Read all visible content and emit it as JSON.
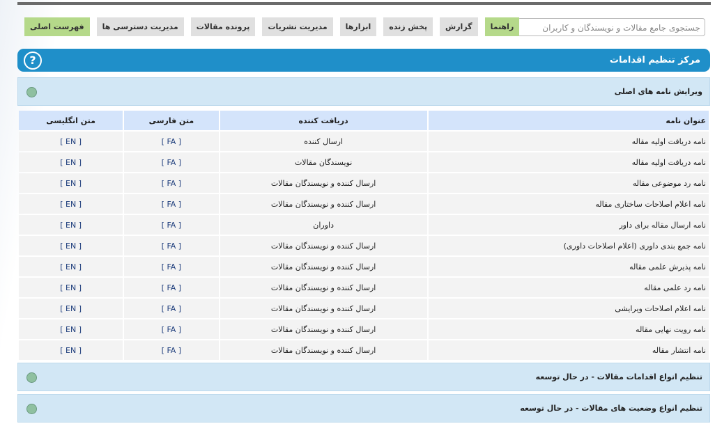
{
  "search": {
    "placeholder": "جستجوی جامع مقالات و نویسندگان و کاربران"
  },
  "nav": [
    {
      "label": "فهرست اصلی",
      "active": true
    },
    {
      "label": "مدیریت دسترسی ها",
      "active": false
    },
    {
      "label": "پرونده مقالات",
      "active": false
    },
    {
      "label": "مدیریت نشریات",
      "active": false
    },
    {
      "label": "ابزارها",
      "active": false
    },
    {
      "label": "پخش زنده",
      "active": false
    },
    {
      "label": "گزارش",
      "active": false
    },
    {
      "label": "راهنما",
      "active": true
    }
  ],
  "header": {
    "title": "مرکز تنظیم اقدامات",
    "help": "?"
  },
  "sections": [
    {
      "title": "ویرایش نامه های اصلی"
    },
    {
      "title": "تنظیم انواع اقدامات مقالات - در حال توسعه"
    },
    {
      "title": "تنظیم انواع وضعیت های مقالات - در حال توسعه"
    }
  ],
  "table": {
    "columns": [
      "عنوان نامه",
      "دریافت کننده",
      "متن فارسی",
      "متن انگلیسی"
    ],
    "rows": [
      [
        "نامه دریافت اولیه مقاله",
        "ارسال کننده",
        "[ FA ]",
        "[ EN ]"
      ],
      [
        "نامه دریافت اولیه مقاله",
        "نویسندگان مقالات",
        "[ FA ]",
        "[ EN ]"
      ],
      [
        "نامه رد موضوعی مقاله",
        "ارسال کننده و نویسندگان مقالات",
        "[ FA ]",
        "[ EN ]"
      ],
      [
        "نامه اعلام اصلاحات ساختاری مقاله",
        "ارسال کننده و نویسندگان مقالات",
        "[ FA ]",
        "[ EN ]"
      ],
      [
        "نامه ارسال مقاله برای داور",
        "داوران",
        "[ FA ]",
        "[ EN ]"
      ],
      [
        "نامه جمع بندی داوری (اعلام اصلاحات داوری)",
        "ارسال کننده و نویسندگان مقالات",
        "[ FA ]",
        "[ EN ]"
      ],
      [
        "نامه پذیرش علمی مقاله",
        "ارسال کننده و نویسندگان مقالات",
        "[ FA ]",
        "[ EN ]"
      ],
      [
        "نامه رد علمی مقاله",
        "ارسال کننده و نویسندگان مقالات",
        "[ FA ]",
        "[ EN ]"
      ],
      [
        "نامه اعلام اصلاحات ویرایشی",
        "ارسال کننده و نویسندگان مقالات",
        "[ FA ]",
        "[ EN ]"
      ],
      [
        "نامه رویت نهایی مقاله",
        "ارسال کننده و نویسندگان مقالات",
        "[ FA ]",
        "[ EN ]"
      ],
      [
        "نامه انتشار مقاله",
        "ارسال کننده و نویسندگان مقالات",
        "[ FA ]",
        "[ EN ]"
      ]
    ]
  }
}
